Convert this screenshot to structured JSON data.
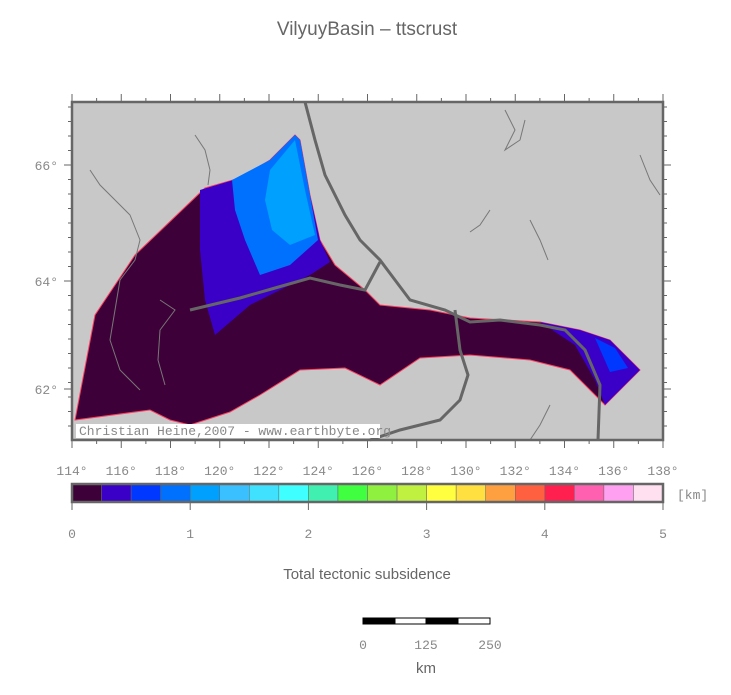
{
  "title": "VilyuyBasin – ttscrust",
  "map": {
    "lat_labels": [
      "66°",
      "64°",
      "62°"
    ],
    "lon_labels": [
      "114°",
      "116°",
      "118°",
      "120°",
      "122°",
      "124°",
      "126°",
      "128°",
      "130°",
      "132°",
      "134°",
      "136°",
      "138°"
    ],
    "credit": "Christian Heine,2007 - www.earthbyte.org"
  },
  "colorbar": {
    "colors": [
      "#3d0038",
      "#3a00c8",
      "#0038ff",
      "#0070ff",
      "#00a0ff",
      "#3ac0ff",
      "#40e0ff",
      "#40ffff",
      "#40f0b0",
      "#40ff40",
      "#90f040",
      "#c0f040",
      "#ffff40",
      "#ffe040",
      "#ffa040",
      "#ff6040",
      "#ff2050",
      "#ff60b0",
      "#ffa0f0",
      "#ffe0f0"
    ],
    "ticks": [
      0,
      1,
      2,
      3,
      4,
      5
    ],
    "unit": "[km]",
    "title": "Total tectonic subsidence"
  },
  "scale_bar": {
    "labels": [
      0,
      125,
      250
    ],
    "unit": "km"
  }
}
